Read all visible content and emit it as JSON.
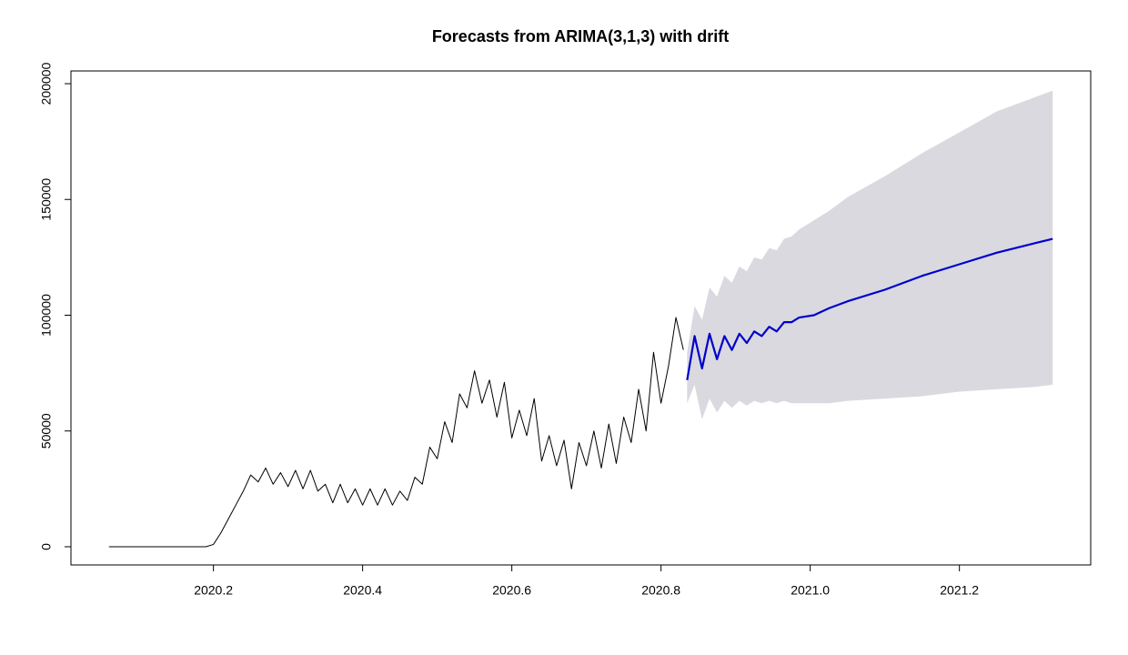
{
  "chart_data": {
    "type": "line",
    "title": "Forecasts from ARIMA(3,1,3) with drift",
    "xlim": [
      2020.009,
      2021.376
    ],
    "ylim": [
      -7860,
      205500
    ],
    "xticks": [
      2020.2,
      2020.4,
      2020.6,
      2020.8,
      {
        "value": 2021.0,
        "label": "2021.0"
      },
      2021.2
    ],
    "yticks": [
      0,
      50000,
      100000,
      150000,
      200000
    ],
    "grid": false,
    "series": [
      {
        "color": "#000000",
        "x": [
          2020.06,
          2020.19,
          2020.2,
          2020.21,
          2020.22,
          2020.23,
          2020.24,
          2020.25,
          2020.26,
          2020.27,
          2020.28,
          2020.29,
          2020.3,
          2020.31,
          2020.32,
          2020.33,
          2020.34,
          2020.35,
          2020.36,
          2020.37,
          2020.38,
          2020.39,
          2020.4,
          2020.41,
          2020.42,
          2020.43,
          2020.44,
          2020.45,
          2020.46,
          2020.47,
          2020.48,
          2020.49,
          2020.5,
          2020.51,
          2020.52,
          2020.53,
          2020.54,
          2020.55,
          2020.56,
          2020.57,
          2020.58,
          2020.59,
          2020.6,
          2020.61,
          2020.62,
          2020.63,
          2020.64,
          2020.65,
          2020.66,
          2020.67,
          2020.68,
          2020.69,
          2020.7,
          2020.71,
          2020.72,
          2020.73,
          2020.74,
          2020.75,
          2020.76,
          2020.77,
          2020.78,
          2020.79,
          2020.8,
          2020.81,
          2020.82,
          2020.83
        ],
        "values": [
          0,
          0,
          1000,
          6000,
          12000,
          18000,
          24000,
          31000,
          28000,
          34000,
          27000,
          32000,
          26000,
          33000,
          25000,
          33000,
          24000,
          27000,
          19000,
          27000,
          19000,
          25000,
          18000,
          25000,
          18000,
          25000,
          18000,
          24000,
          20000,
          30000,
          27000,
          43000,
          38000,
          54000,
          45000,
          66000,
          60000,
          76000,
          62000,
          72000,
          56000,
          71000,
          47000,
          59000,
          48000,
          64000,
          37000,
          48000,
          35000,
          46000,
          25000,
          45000,
          35000,
          50000,
          34000,
          53000,
          36000,
          56000,
          45000,
          68000,
          50000,
          84000,
          62000,
          78000,
          99000,
          85000
        ]
      },
      {
        "color": "#0000cd",
        "band_color": "#d9d9df",
        "x": [
          2020.835,
          2020.845,
          2020.855,
          2020.865,
          2020.875,
          2020.885,
          2020.895,
          2020.905,
          2020.915,
          2020.925,
          2020.935,
          2020.945,
          2020.955,
          2020.965,
          2020.975,
          2020.985,
          2021.005,
          2021.025,
          2021.05,
          2021.1,
          2021.15,
          2021.2,
          2021.25,
          2021.3,
          2021.325
        ],
        "values": [
          72000,
          91000,
          77000,
          92000,
          81000,
          91000,
          85000,
          92000,
          88000,
          93000,
          91000,
          95000,
          93000,
          97000,
          97000,
          99000,
          100000,
          103000,
          106000,
          111000,
          117000,
          122000,
          127000,
          131000,
          133000
        ],
        "lower": [
          62000,
          70000,
          55000,
          64000,
          58000,
          63000,
          60000,
          63000,
          61000,
          63000,
          62000,
          63000,
          62000,
          63000,
          62000,
          62000,
          62000,
          62000,
          63000,
          64000,
          65000,
          67000,
          68000,
          69000,
          70000
        ],
        "upper": [
          84000,
          104000,
          98000,
          112000,
          108000,
          117000,
          114000,
          121000,
          119000,
          125000,
          124000,
          129000,
          128000,
          133000,
          134000,
          137000,
          141000,
          145000,
          151000,
          160000,
          170000,
          179000,
          188000,
          194000,
          197000
        ]
      }
    ]
  }
}
